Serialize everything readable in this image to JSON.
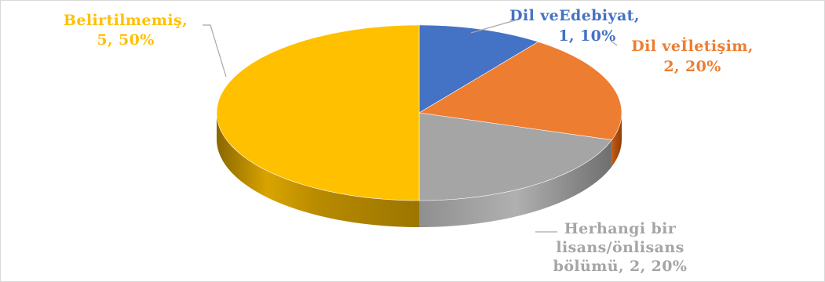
{
  "chart_data": {
    "type": "pie",
    "style": "3d",
    "title": "",
    "slices": [
      {
        "name": "Dil ve Edebiyat",
        "label_line1": "Dil veEdebiyat,",
        "label_line2": "1, 10%",
        "value": 1,
        "percent": 10,
        "color": "#4472c4",
        "side_color": "#2f5597"
      },
      {
        "name": "Dil ve İletişim",
        "label_line1": "Dil veİletişim,",
        "label_line2": "2, 20%",
        "value": 2,
        "percent": 20,
        "color": "#ed7d31",
        "side_color": "#c55a11"
      },
      {
        "name": "Herhangi bir lisans/önlisans bölümü",
        "label_line1": "Herhangi bir",
        "label_line2": "lisans/önlisans",
        "label_line3": "bölümü, 2, 20%",
        "value": 2,
        "percent": 20,
        "color": "#a5a5a5",
        "side_color": "#7f7f7f"
      },
      {
        "name": "Belirtilmemiş",
        "label_line1": "Belirtilmemiş,",
        "label_line2": "5, 50%",
        "value": 5,
        "percent": 50,
        "color": "#ffc000",
        "side_color": "#c79600"
      }
    ],
    "legend": "none",
    "leader_line_color": "#a6a6a6"
  }
}
